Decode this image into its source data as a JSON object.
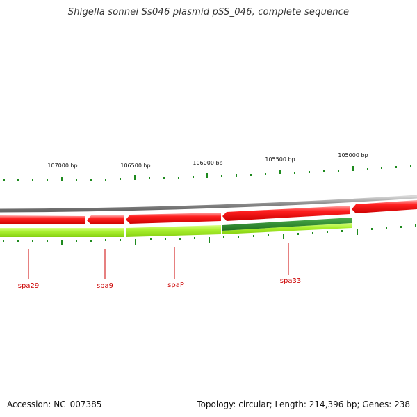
{
  "title": "Shigella sonnei Ss046 plasmid pSS_046, complete sequence",
  "footer": {
    "accession": "Accession: NC_007385",
    "summary": "Topology: circular; Length: 214,396 bp; Genes: 238"
  },
  "colors": {
    "backbone": "#8c8c8c",
    "forward_gene": "#ff0000",
    "reverse_light": "#a6f020",
    "reverse_dark": "#2e8b2e",
    "tick": "#1e8a1e",
    "label": "#cc0000"
  },
  "scale_labels": [
    "107000 bp",
    "106500 bp",
    "106000 bp",
    "105500 bp",
    "105000 bp"
  ],
  "gene_labels": [
    "spa29",
    "spa9",
    "spaP",
    "spa33"
  ]
}
